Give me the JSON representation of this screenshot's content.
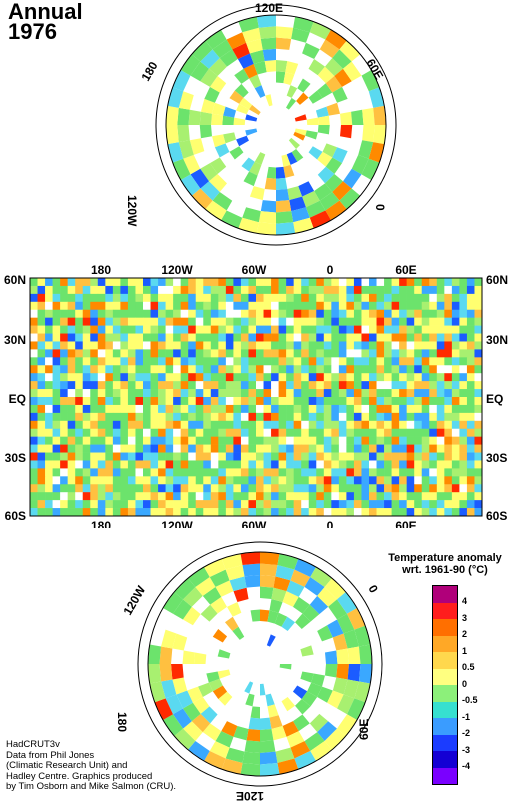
{
  "title": {
    "period": "Annual",
    "year": "1976"
  },
  "north_polar": {
    "labels": {
      "top": "120E",
      "upper_left": "180",
      "upper_right": "60E",
      "lower_left": "120W",
      "right": "0"
    }
  },
  "equirect_map": {
    "top_lon_labels": [
      "180",
      "120W",
      "60W",
      "0",
      "60E"
    ],
    "bottom_lon_labels": [
      "180",
      "120W",
      "60W",
      "0",
      "60E"
    ],
    "left_lat_labels": [
      "60N",
      "30N",
      "EQ",
      "30S",
      "60S"
    ],
    "right_lat_labels": [
      "60N",
      "30N",
      "EQ",
      "30S",
      "60S"
    ]
  },
  "south_polar": {
    "labels": {
      "upper_left": "120W",
      "upper_right": "0",
      "lower_left": "180",
      "right": "60E",
      "bottom": "120E"
    }
  },
  "legend": {
    "title_line1": "Temperature anomaly",
    "title_line2": "wrt. 1961-90  (°C)",
    "ticks": [
      "4",
      "3",
      "2",
      "1",
      "0.5",
      "0",
      "-0.5",
      "-1",
      "-2",
      "-3",
      "-4"
    ],
    "colors": [
      "#b0007a",
      "#ff1d1d",
      "#ff6f00",
      "#ffa826",
      "#ffd84d",
      "#ffff80",
      "#8cf07a",
      "#36e0d0",
      "#3a9cff",
      "#1b3cff",
      "#1400d4",
      "#7a00ff"
    ]
  },
  "credit": {
    "line1": "HadCRUT3v",
    "line2": "Data from Phil Jones",
    "line3": "(Climatic Research Unit) and",
    "line4": "Hadley Centre.  Graphics produced",
    "line5": "by Tim Osborn and Mike Salmon (CRU)."
  },
  "anomaly_palette": {
    "cold2": "#1b5cff",
    "cold1": "#3aa8ff",
    "cool": "#5ad9f0",
    "neutral_cool": "#6ce36c",
    "neutral": "#a8f070",
    "warm": "#ffff70",
    "warm1": "#ffc040",
    "warm2": "#ff8a00",
    "hot": "#ff2a00"
  }
}
